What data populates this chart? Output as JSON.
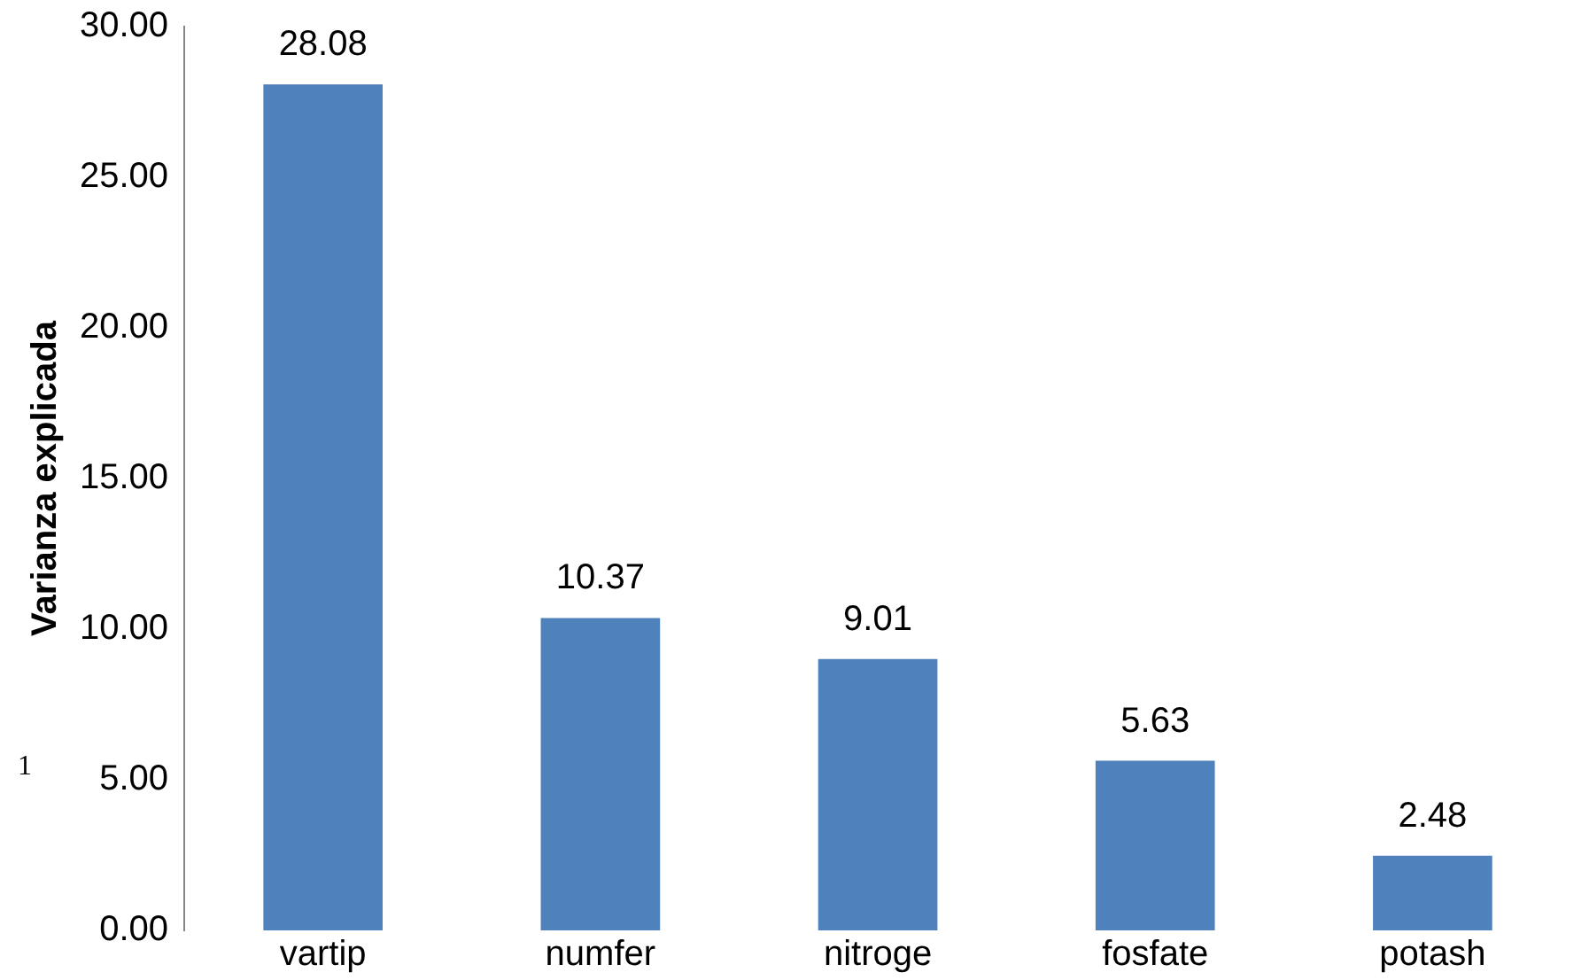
{
  "chart_data": {
    "type": "bar",
    "ylabel": "Varianza explicada",
    "categories": [
      "vartip",
      "numfer",
      "nitroge",
      "fosfate",
      "potash"
    ],
    "values": [
      28.08,
      10.37,
      9.01,
      5.63,
      2.48
    ],
    "color": "#4f81bd",
    "ylim": [
      0,
      30
    ],
    "yticks": [
      {
        "value": 0,
        "label": "0.00"
      },
      {
        "value": 5,
        "label": "5.00"
      },
      {
        "value": 10,
        "label": "10.00"
      },
      {
        "value": 15,
        "label": "15.00"
      },
      {
        "value": 20,
        "label": "20.00"
      },
      {
        "value": 25,
        "label": "25.00"
      },
      {
        "value": 30,
        "label": "30.00"
      }
    ],
    "grid": false,
    "legend": false,
    "data_labels": true,
    "annotations": [
      "1"
    ]
  }
}
